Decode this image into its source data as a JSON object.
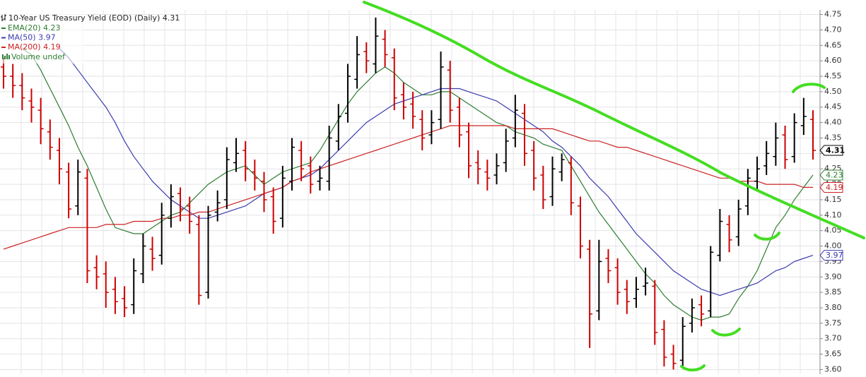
{
  "chart_data": {
    "type": "ohlc",
    "title": "10-Year US Treasury Yield (EOD) (Daily)",
    "last": 4.31,
    "up_color": "#000000",
    "down_color": "#cc0000",
    "open": [
      4.58,
      4.55,
      4.52,
      4.47,
      4.44,
      4.37,
      4.31,
      4.24,
      4.13,
      4.22,
      3.93,
      3.91,
      3.86,
      3.83,
      3.81,
      3.91,
      3.99,
      3.97,
      4.09,
      4.17,
      4.13,
      4.07,
      3.85,
      4.11,
      4.15,
      4.27,
      4.31,
      4.24,
      4.21,
      4.16,
      4.09,
      4.21,
      4.31,
      4.26,
      4.21,
      4.21,
      4.34,
      4.43,
      4.54,
      4.63,
      4.59,
      4.67,
      4.61,
      4.49,
      4.46,
      4.41,
      4.36,
      4.41,
      4.57,
      4.45,
      4.37,
      4.27,
      4.24,
      4.23,
      4.27,
      4.35,
      4.43,
      4.31,
      4.23,
      4.16,
      4.24,
      4.27,
      4.13,
      3.99,
      3.79,
      3.96,
      3.93,
      3.86,
      3.83,
      3.87,
      3.87,
      3.73,
      3.65,
      3.63,
      3.75,
      3.81,
      3.79,
      3.97,
      4.07,
      4.03,
      4.13,
      4.21,
      4.26,
      4.29,
      4.36,
      4.29,
      4.39,
      4.41
    ],
    "high": [
      4.61,
      4.59,
      4.56,
      4.51,
      4.48,
      4.41,
      4.35,
      4.27,
      4.28,
      4.25,
      3.97,
      3.95,
      3.9,
      3.87,
      3.96,
      4.04,
      4.03,
      4.14,
      4.2,
      4.19,
      4.16,
      4.1,
      4.13,
      4.18,
      4.32,
      4.35,
      4.34,
      4.28,
      4.24,
      4.19,
      4.26,
      4.35,
      4.34,
      4.29,
      4.26,
      4.39,
      4.46,
      4.59,
      4.68,
      4.66,
      4.74,
      4.7,
      4.64,
      4.53,
      4.5,
      4.44,
      4.44,
      4.63,
      4.6,
      4.48,
      4.4,
      4.31,
      4.28,
      4.3,
      4.38,
      4.49,
      4.46,
      4.34,
      4.26,
      4.29,
      4.3,
      4.29,
      4.16,
      4.02,
      4.02,
      3.99,
      3.96,
      3.89,
      3.9,
      3.93,
      3.89,
      3.76,
      3.68,
      3.77,
      3.83,
      3.84,
      4.0,
      4.12,
      4.1,
      4.15,
      4.25,
      4.29,
      4.34,
      4.4,
      4.39,
      4.43,
      4.48,
      4.44
    ],
    "low": [
      4.51,
      4.48,
      4.44,
      4.4,
      4.33,
      4.28,
      4.2,
      4.09,
      4.1,
      3.88,
      3.86,
      3.8,
      3.78,
      3.77,
      3.78,
      3.88,
      3.92,
      3.94,
      4.06,
      4.08,
      4.04,
      3.81,
      3.83,
      4.08,
      4.12,
      4.24,
      4.21,
      4.18,
      4.11,
      4.04,
      4.06,
      4.18,
      4.21,
      4.17,
      4.18,
      4.18,
      4.31,
      4.4,
      4.51,
      4.56,
      4.56,
      4.58,
      4.44,
      4.41,
      4.38,
      4.31,
      4.33,
      4.38,
      4.4,
      4.32,
      4.22,
      4.2,
      4.18,
      4.2,
      4.24,
      4.32,
      4.26,
      4.18,
      4.12,
      4.13,
      4.21,
      4.1,
      3.96,
      3.67,
      3.76,
      3.88,
      3.81,
      3.78,
      3.8,
      3.84,
      3.68,
      3.61,
      3.6,
      3.61,
      3.72,
      3.74,
      3.77,
      3.95,
      3.98,
      4.0,
      4.1,
      4.18,
      4.23,
      4.26,
      4.25,
      4.27,
      4.36,
      4.28
    ],
    "close": [
      4.55,
      4.52,
      4.48,
      4.45,
      4.38,
      4.32,
      4.25,
      4.12,
      4.24,
      3.92,
      3.9,
      3.85,
      3.82,
      3.8,
      3.92,
      4.0,
      3.96,
      4.1,
      4.16,
      4.12,
      4.08,
      3.84,
      4.1,
      4.14,
      4.28,
      4.3,
      4.25,
      4.22,
      4.15,
      4.08,
      4.22,
      4.32,
      4.25,
      4.2,
      4.22,
      4.35,
      4.42,
      4.55,
      4.62,
      4.6,
      4.68,
      4.62,
      4.48,
      4.45,
      4.42,
      4.35,
      4.4,
      4.58,
      4.44,
      4.36,
      4.26,
      4.25,
      4.22,
      4.26,
      4.34,
      4.44,
      4.3,
      4.22,
      4.15,
      4.25,
      4.28,
      4.14,
      4.0,
      3.78,
      3.95,
      3.92,
      3.85,
      3.82,
      3.86,
      3.88,
      3.72,
      3.64,
      3.62,
      3.74,
      3.8,
      3.78,
      3.98,
      4.08,
      4.02,
      4.12,
      4.22,
      4.25,
      4.3,
      4.35,
      4.28,
      4.4,
      4.42,
      4.31
    ],
    "overlays": [
      {
        "name": "EMA(20)",
        "color": "#2e7d32",
        "last": 4.23,
        "values": [
          null,
          null,
          4.64,
          4.62,
          4.57,
          4.51,
          4.45,
          4.39,
          4.32,
          4.26,
          4.19,
          4.12,
          4.06,
          4.05,
          4.04,
          4.04,
          4.06,
          4.08,
          4.1,
          4.11,
          4.14,
          4.17,
          4.2,
          4.22,
          4.24,
          4.25,
          4.26,
          4.23,
          4.2,
          4.22,
          4.24,
          4.25,
          4.26,
          4.27,
          4.31,
          4.36,
          4.41,
          4.46,
          4.5,
          4.53,
          4.56,
          4.58,
          4.56,
          4.53,
          4.51,
          4.49,
          4.49,
          4.5,
          4.5,
          4.48,
          4.46,
          4.44,
          4.42,
          4.4,
          4.39,
          4.37,
          4.36,
          4.35,
          4.33,
          4.32,
          4.31,
          4.26,
          4.21,
          4.16,
          4.11,
          4.07,
          4.03,
          3.99,
          3.95,
          3.91,
          3.88,
          3.84,
          3.81,
          3.79,
          3.77,
          3.76,
          3.77,
          3.77,
          3.78,
          3.83,
          3.87,
          3.92,
          3.99,
          4.06,
          4.1,
          4.15,
          4.19,
          4.23
        ]
      },
      {
        "name": "MA(50)",
        "color": "#3b3baf",
        "last": 3.97,
        "values": [
          null,
          null,
          null,
          null,
          null,
          null,
          4.64,
          4.61,
          4.57,
          4.53,
          4.49,
          4.45,
          4.4,
          4.34,
          4.29,
          4.25,
          4.21,
          4.18,
          4.15,
          4.13,
          4.11,
          4.09,
          4.09,
          4.1,
          4.11,
          4.12,
          4.13,
          4.15,
          4.17,
          4.18,
          4.19,
          4.21,
          4.22,
          4.23,
          4.25,
          4.28,
          4.31,
          4.34,
          4.37,
          4.4,
          4.42,
          4.44,
          4.46,
          4.47,
          4.48,
          4.49,
          4.5,
          4.51,
          4.51,
          4.51,
          4.5,
          4.49,
          4.48,
          4.47,
          4.45,
          4.43,
          4.41,
          4.39,
          4.37,
          4.34,
          4.32,
          4.29,
          4.26,
          4.22,
          4.19,
          4.16,
          4.12,
          4.08,
          4.04,
          4.01,
          3.98,
          3.95,
          3.92,
          3.9,
          3.88,
          3.86,
          3.85,
          3.84,
          3.85,
          3.86,
          3.87,
          3.88,
          3.9,
          3.92,
          3.93,
          3.95,
          3.96,
          3.97
        ]
      },
      {
        "name": "MA(200)",
        "color": "#cc2222",
        "last": 4.19,
        "values": [
          3.99,
          4.0,
          4.01,
          4.02,
          4.03,
          4.04,
          4.05,
          4.06,
          4.06,
          4.06,
          4.06,
          4.07,
          4.07,
          4.07,
          4.08,
          4.08,
          4.08,
          4.09,
          4.09,
          4.1,
          4.1,
          4.11,
          4.11,
          4.12,
          4.13,
          4.14,
          4.15,
          4.16,
          4.17,
          4.18,
          4.19,
          4.21,
          4.22,
          4.24,
          4.25,
          4.26,
          4.27,
          4.28,
          4.29,
          4.3,
          4.31,
          4.32,
          4.33,
          4.34,
          4.35,
          4.36,
          4.37,
          4.38,
          4.39,
          4.39,
          4.39,
          4.39,
          4.39,
          4.39,
          4.39,
          4.38,
          4.38,
          4.38,
          4.38,
          4.38,
          4.37,
          4.36,
          4.35,
          4.34,
          4.34,
          4.33,
          4.32,
          4.32,
          4.31,
          4.3,
          4.29,
          4.28,
          4.27,
          4.26,
          4.25,
          4.24,
          4.23,
          4.22,
          4.22,
          4.21,
          4.21,
          4.21,
          4.2,
          4.2,
          4.2,
          4.2,
          4.19,
          4.19
        ]
      }
    ],
    "volume_label": "Volume undef",
    "ylim": [
      3.585,
      4.765
    ],
    "yticks": [
      {
        "value": 3.6,
        "label": "3.60"
      },
      3.65,
      {
        "value": 3.7,
        "label": "3.70"
      },
      3.75,
      {
        "value": 3.8,
        "label": "3.80"
      },
      3.85,
      {
        "value": 3.9,
        "label": "3.90"
      },
      3.95,
      {
        "value": 4,
        "label": "4.00"
      },
      4.05,
      {
        "value": 4.1,
        "label": "4.10"
      },
      4.15,
      {
        "value": 4.2,
        "label": "4.20"
      },
      4.25,
      {
        "value": 4.3,
        "label": "4.30"
      },
      4.35,
      {
        "value": 4.4,
        "label": "4.40"
      },
      4.45,
      {
        "value": 4.5,
        "label": "4.50"
      },
      4.55,
      {
        "value": 4.6,
        "label": "4.60"
      },
      4.65,
      {
        "value": 4.7,
        "label": "4.70"
      },
      4.75
    ],
    "grid": true
  }
}
